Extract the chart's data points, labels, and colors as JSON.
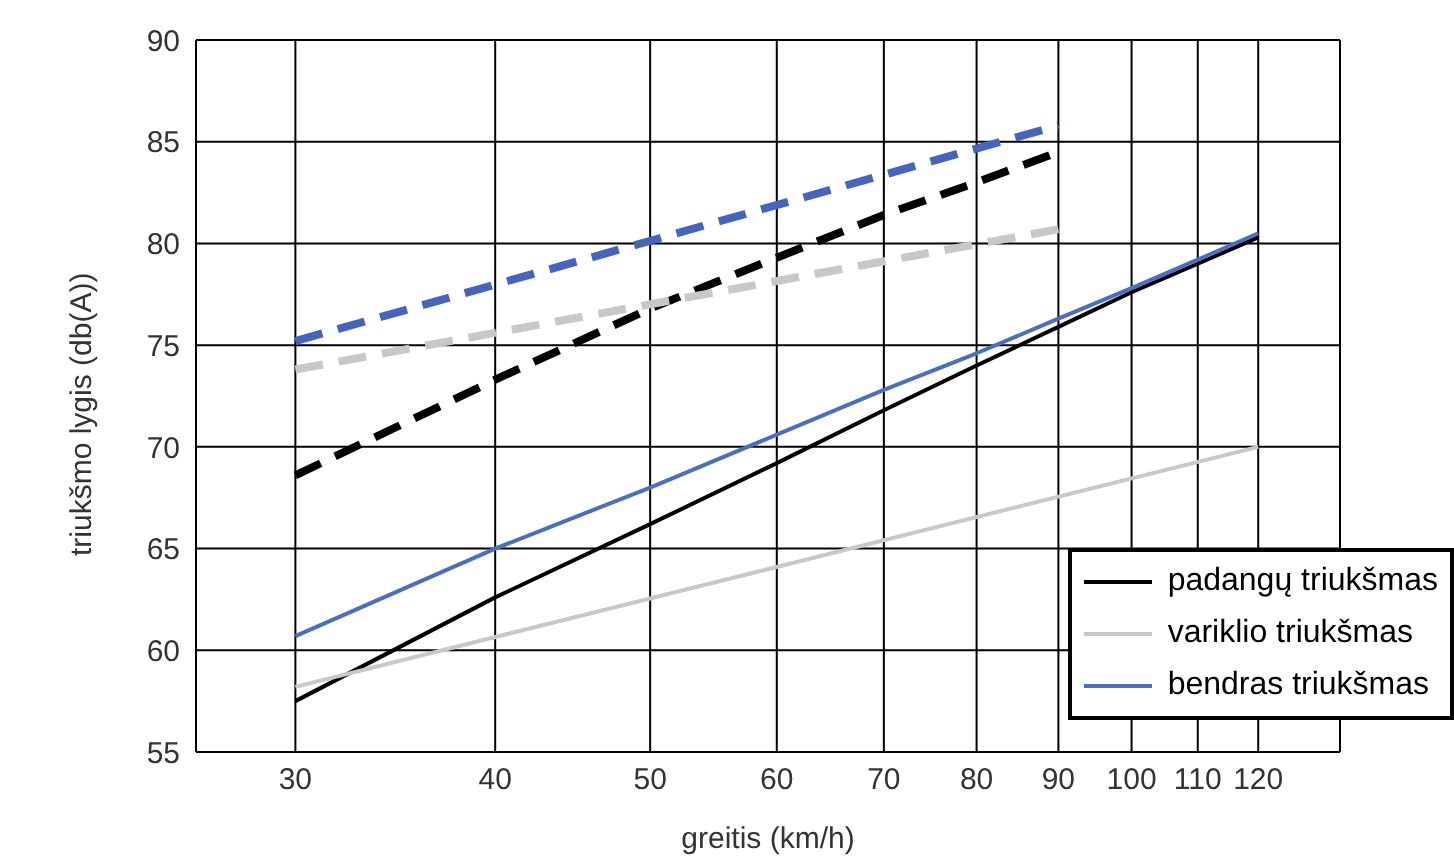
{
  "chart_data": {
    "type": "line",
    "xlabel": "greitis (km/h)",
    "ylabel": "triukšmo lygis (db(A))",
    "log": "x",
    "xlim": [
      26,
      135
    ],
    "xticks": [
      30,
      40,
      50,
      60,
      70,
      80,
      90,
      100,
      110,
      120
    ],
    "ylim": [
      55,
      90
    ],
    "yticks": [
      55,
      60,
      65,
      70,
      75,
      80,
      85,
      90
    ],
    "grid": true,
    "legend": "bottom right",
    "marker": "none",
    "series": [
      {
        "name": "padangų triukšmas",
        "color": "#000000",
        "line_style": "solid",
        "x": [
          30,
          40,
          50,
          60,
          70,
          80,
          90,
          100,
          110,
          120
        ],
        "values": [
          57.5,
          62.6,
          66.2,
          69.2,
          71.8,
          74,
          75.9,
          77.6,
          79,
          80.3
        ]
      },
      {
        "name": "variklio triukšmas",
        "color": "#c8c8c8",
        "line_style": "solid",
        "x": [
          30,
          120
        ],
        "values": [
          58.2,
          70
        ]
      },
      {
        "name": "bendras triukšmas",
        "color": "#4a6fc0",
        "line_style": "solid",
        "x": [
          30,
          40,
          50,
          60,
          70,
          80,
          90,
          100,
          110,
          120
        ],
        "values": [
          60.7,
          65,
          68,
          70.6,
          72.8,
          74.6,
          76.3,
          77.8,
          79.2,
          80.5
        ]
      },
      {
        "color": "#4464c0",
        "line_style": "dashed",
        "x": [
          30,
          90
        ],
        "values": [
          75.2,
          85.8
        ]
      },
      {
        "color": "#000000",
        "line_style": "dashed",
        "x": [
          30,
          40,
          50,
          60,
          70,
          80,
          90
        ],
        "values": [
          68.6,
          73.3,
          76.8,
          79.3,
          81.4,
          83,
          84.5
        ]
      },
      {
        "color": "#c8c8c8",
        "line_style": "dashed",
        "x": [
          30,
          90
        ],
        "values": [
          73.8,
          80.7
        ]
      }
    ]
  }
}
